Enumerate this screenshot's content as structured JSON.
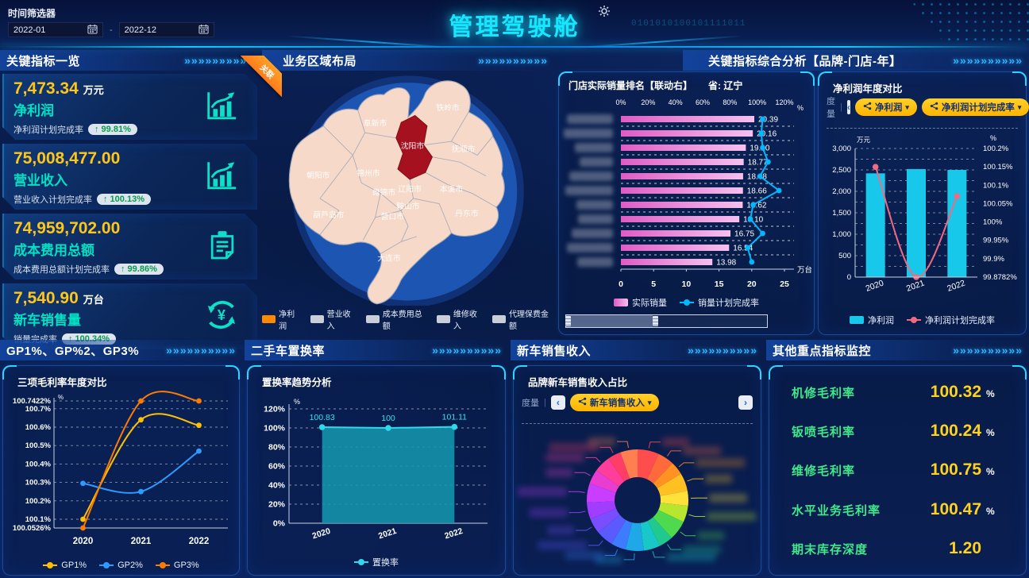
{
  "header": {
    "filter_label": "时间筛选器",
    "date_from": "2022-01",
    "date_to": "2022-12",
    "title": "管理驾驶舱",
    "binary_decoration": "0101010100101111011"
  },
  "decor": {
    "chevrons": "»»»»»»»»»»"
  },
  "kpi_panel": {
    "title": "关键指标一览",
    "ribbon": "关联",
    "cards": [
      {
        "value": "7,473.34",
        "unit": "万元",
        "name": "净利润",
        "sub_label": "净利润计划完成率",
        "badge": "↑ 99.81%",
        "icon": "trend-chart-icon"
      },
      {
        "value": "75,008,477.00",
        "unit": "",
        "name": "营业收入",
        "sub_label": "营业收入计划完成率",
        "badge": "↑ 100.13%",
        "icon": "trend-chart-icon"
      },
      {
        "value": "74,959,702.00",
        "unit": "",
        "name": "成本费用总额",
        "sub_label": "成本费用总额计划完成率",
        "badge": "↑ 99.86%",
        "icon": "clipboard-icon"
      },
      {
        "value": "7,540.90",
        "unit": "万台",
        "name": "新车销售量",
        "sub_label": "销量完成率",
        "badge": "↑ 100.34%",
        "icon": "yen-circle-icon"
      }
    ]
  },
  "map_panel": {
    "title": "业务区域布局",
    "highlight_city": "沈阳市",
    "cities": [
      "铁岭市",
      "阜新市",
      "沈阳市",
      "抚顺市",
      "朝阳市",
      "锦州市",
      "盘锦市",
      "辽阳市",
      "本溪市",
      "鞍山市",
      "营口市",
      "丹东市",
      "葫芦岛市",
      "大连市"
    ],
    "legend": [
      {
        "label": "净利润",
        "color": "#ff8a00"
      },
      {
        "label": "营业收入",
        "color": "#c9ced8"
      },
      {
        "label": "成本费用总额",
        "color": "#c9ced8"
      },
      {
        "label": "维修收入",
        "color": "#c9ced8"
      },
      {
        "label": "代理保费金额",
        "color": "#c9ced8"
      }
    ]
  },
  "analysis_panel": {
    "title": "关键指标综合分析【品牌-门店-年】",
    "dim_label": "度量",
    "pills": [
      "净利润",
      "净利润计划完成率"
    ]
  },
  "newcar_panel": {
    "title": "新车销售收入",
    "dim_label": "度量",
    "pills": [
      "新车销售收入"
    ]
  },
  "gp_panel": {
    "title": "GP1%、GP%2、GP3%"
  },
  "replace_panel": {
    "title": "二手车置换率"
  },
  "monitor_panel": {
    "title": "其他重点指标监控",
    "metrics": [
      {
        "label": "机修毛利率",
        "value": "100.32",
        "unit": "%"
      },
      {
        "label": "钣喷毛利率",
        "value": "100.24",
        "unit": "%"
      },
      {
        "label": "维修毛利率",
        "value": "100.75",
        "unit": "%"
      },
      {
        "label": "水平业务毛利率",
        "value": "100.47",
        "unit": "%"
      },
      {
        "label": "期末库存深度",
        "value": "1.20",
        "unit": ""
      }
    ]
  },
  "chart_data": [
    {
      "type": "bar",
      "orientation": "horizontal",
      "title": "门店实际销量排名【联动右】",
      "region_label": "省: 辽宁",
      "categories_blurred": true,
      "values": [
        20.39,
        20.16,
        19.1,
        18.77,
        18.68,
        18.66,
        18.62,
        18.1,
        16.75,
        16.54,
        13.98
      ],
      "series": [
        {
          "name": "实际销量",
          "color": "#e86ad0"
        },
        {
          "name": "销量计划完成率",
          "color": "#00b8ff",
          "estimated": true,
          "values": [
            104,
            103,
            104,
            108,
            102,
            116,
            97,
            95,
            104,
            93,
            96
          ]
        }
      ],
      "x_axis_bottom": {
        "ticks": [
          0,
          5,
          10,
          15,
          20,
          25
        ],
        "unit": "万台",
        "max": 25
      },
      "x_axis_top": {
        "ticks": [
          "0%",
          "20%",
          "40%",
          "60%",
          "80%",
          "100%",
          "120%"
        ],
        "unit": "%",
        "max": 120
      }
    },
    {
      "type": "bar",
      "title": "净利润年度对比",
      "categories": [
        "2020",
        "2021",
        "2022"
      ],
      "series": [
        {
          "name": "净利润",
          "type": "bar",
          "color": "#17c8ea",
          "values": [
            2420,
            2520,
            2500
          ]
        },
        {
          "name": "净利润计划完成率",
          "type": "line",
          "color": "#f06a84",
          "values": [
            100.15,
            99.8782,
            100.07
          ]
        }
      ],
      "left_axis": {
        "unit": "万元",
        "max": 3000,
        "step": 500
      },
      "right_axis": {
        "unit": "%",
        "ticks": [
          "100.2%",
          "100.15%",
          "100.1%",
          "100.05%",
          "100%",
          "99.95%",
          "99.9%",
          "99.8782%"
        ]
      }
    },
    {
      "type": "line",
      "title": "三项毛利率年度对比",
      "categories": [
        "2020",
        "2021",
        "2022"
      ],
      "yticks": [
        "100.7422%",
        "100.7%",
        "100.6%",
        "100.5%",
        "100.4%",
        "100.3%",
        "100.2%",
        "100.1%",
        "100.0526%"
      ],
      "y_unit": "%",
      "series": [
        {
          "name": "GP1%",
          "color": "#ffc000",
          "values": [
            100.1,
            100.64,
            100.61
          ]
        },
        {
          "name": "GP2%",
          "color": "#2e9bff",
          "values": [
            100.295,
            100.25,
            100.47
          ]
        },
        {
          "name": "GP3%",
          "color": "#ff7a00",
          "values": [
            100.0526,
            100.7422,
            100.7422
          ]
        }
      ]
    },
    {
      "type": "area",
      "title": "置换率趋势分析",
      "categories": [
        "2020",
        "2021",
        "2022"
      ],
      "series": [
        {
          "name": "置换率",
          "color": "#2fd8ea",
          "values": [
            100.83,
            100,
            101.11
          ],
          "labels": [
            "100.83",
            "100",
            "101.11"
          ]
        }
      ],
      "y_axis": {
        "unit": "%",
        "max": 120,
        "step": 20
      }
    },
    {
      "type": "pie",
      "title": "品牌新车销售收入占比",
      "labels_blurred": true,
      "values_estimated": [
        1.3,
        1,
        0.8,
        1.1,
        0.9,
        1,
        1.2,
        0.85,
        1,
        1.1,
        0.9,
        1.05,
        0.95,
        1,
        1.15,
        0.9,
        1,
        0.8,
        1.05
      ],
      "slice_colors": [
        "#ff4d4d",
        "#ff6a3d",
        "#ff9222",
        "#ffc022",
        "#ffe13a",
        "#b8e62e",
        "#4ed94e",
        "#1fc98f",
        "#18c8c8",
        "#1fa8e8",
        "#3d7bff",
        "#5a5aff",
        "#7a4dff",
        "#a03dff",
        "#c93dff",
        "#e83dd0",
        "#ff3d9a",
        "#ff3d66",
        "#ff7f50"
      ]
    }
  ]
}
